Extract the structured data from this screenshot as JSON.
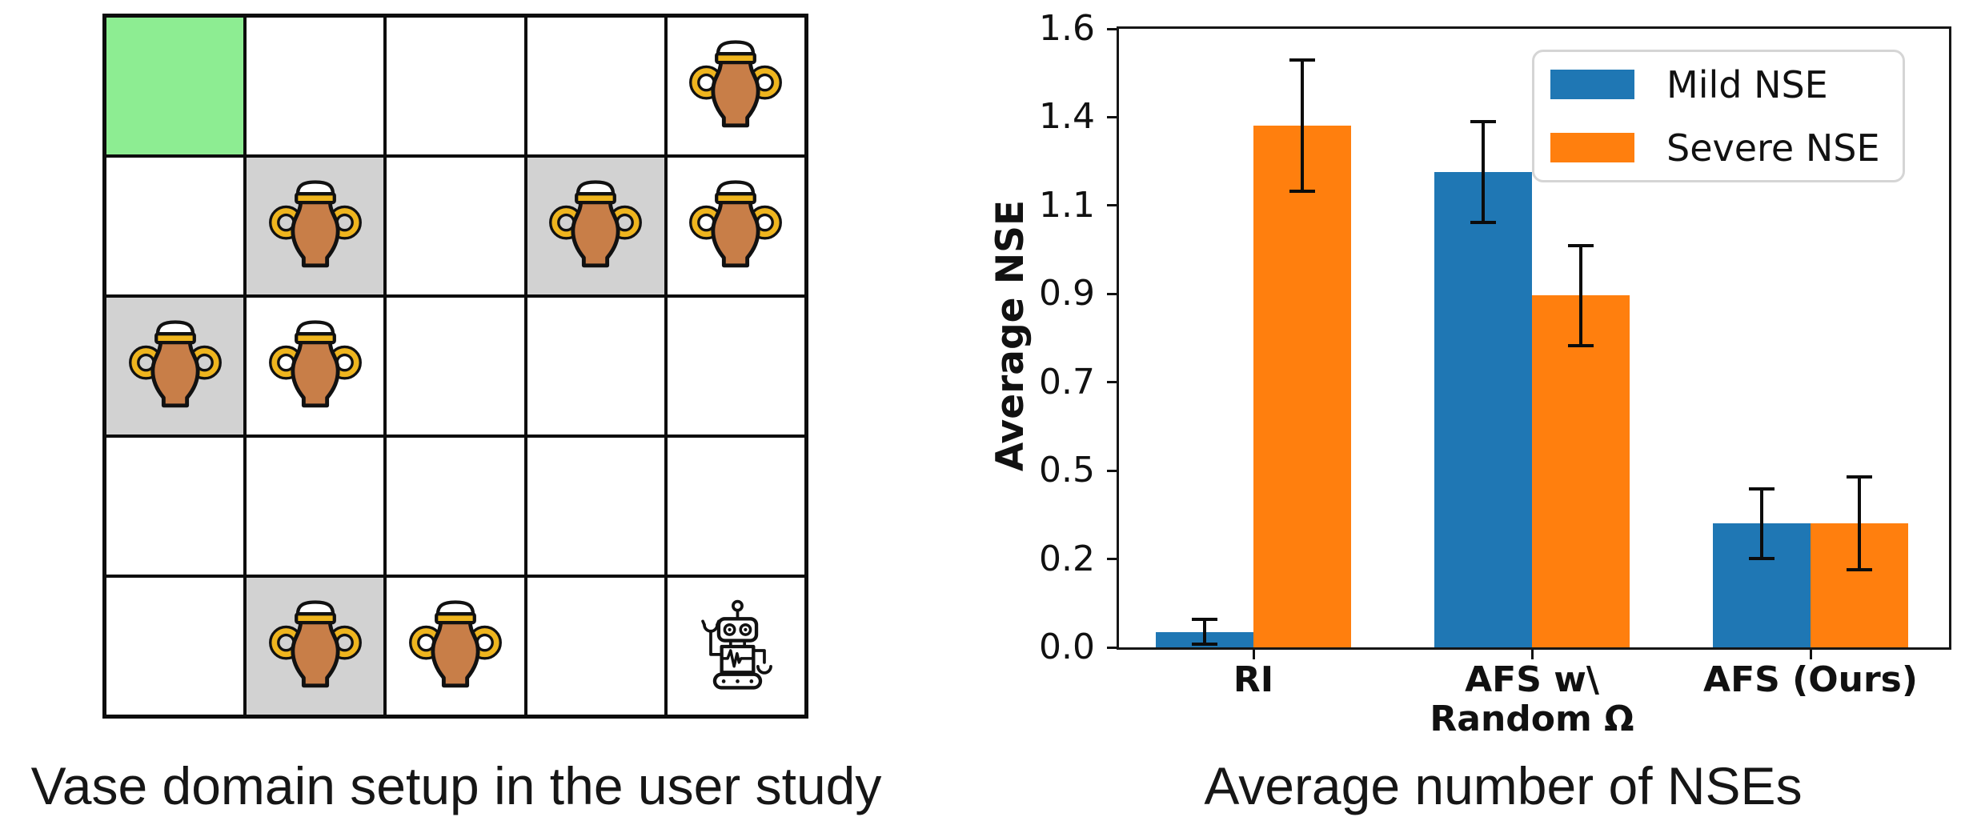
{
  "figure": {
    "background": "#ffffff"
  },
  "left_panel": {
    "caption": "Vase domain setup in the user study",
    "grid": {
      "rows": 5,
      "cols": 5,
      "goal_cell_color": "#8ded92",
      "shaded_cell_color": "#d2d2d2",
      "line_color": "#0d0d0d",
      "cells": [
        [
          "goal",
          "empty",
          "empty",
          "empty",
          "vase"
        ],
        [
          "empty",
          "vase_shaded",
          "empty",
          "vase_shaded",
          "vase"
        ],
        [
          "vase_shaded",
          "vase",
          "empty",
          "empty",
          "empty"
        ],
        [
          "empty",
          "empty",
          "empty",
          "empty",
          "empty"
        ],
        [
          "empty",
          "vase_shaded",
          "vase",
          "empty",
          "robot"
        ]
      ],
      "icons": {
        "vase": {
          "name": "vase-icon",
          "body_color": "#c87e48",
          "handle_color": "#efb51e",
          "lid_color": "#ffffff",
          "outline_color": "#111111"
        },
        "robot": {
          "name": "robot-icon",
          "line_color": "#111111",
          "fill_color": "#ffffff"
        }
      }
    }
  },
  "right_panel": {
    "caption": "Average number of NSEs"
  },
  "chart_data": {
    "type": "bar",
    "title": "Average number of NSEs",
    "ylabel": "Average NSE",
    "xlabel": "",
    "ylim": [
      0,
      1.6
    ],
    "ytick_labels": [
      "0.0",
      "0.2",
      "0.5",
      "0.7",
      "0.9",
      "1.1",
      "1.4",
      "1.6"
    ],
    "categories": [
      "RI",
      "AFS w\\ Random Ω",
      "AFS (Ours)"
    ],
    "categories_display": [
      [
        "RI"
      ],
      [
        "AFS w\\",
        "Random Ω"
      ],
      [
        "AFS (Ours)"
      ]
    ],
    "series": [
      {
        "name": "Mild NSE",
        "color": "#1f77b4",
        "values": [
          0.04,
          1.23,
          0.32
        ],
        "errors": [
          0.032,
          0.13,
          0.09
        ]
      },
      {
        "name": "Severe NSE",
        "color": "#ff7f0e",
        "values": [
          1.35,
          0.91,
          0.32
        ],
        "errors": [
          0.17,
          0.13,
          0.12
        ]
      }
    ],
    "legend_position": "upper right",
    "grid": false,
    "error_bars": true
  }
}
